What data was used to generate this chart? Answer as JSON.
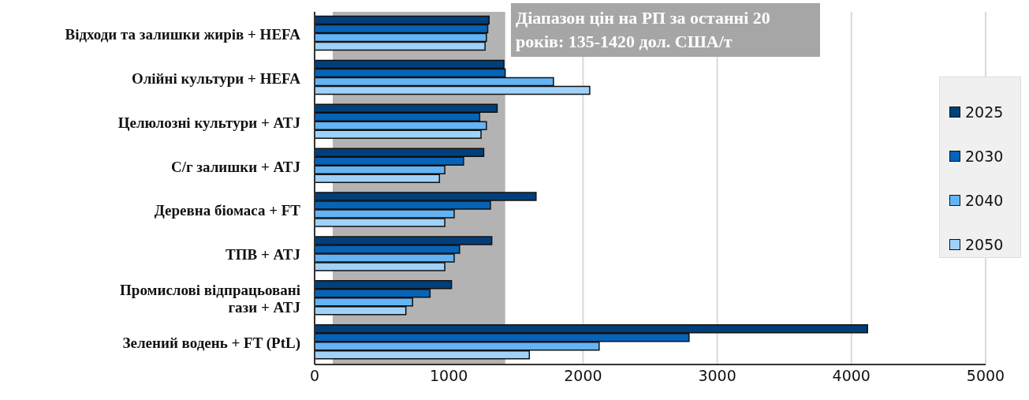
{
  "chart_data": {
    "type": "bar",
    "orientation": "horizontal",
    "categories": [
      "Відходи та залишки жирів + HEFA",
      "Олійні культури + HEFA",
      "Целюлозні культури + ATJ",
      "С/г залишки + ATJ",
      "Деревна біомаса + FT",
      "ТПВ + ATJ",
      "Промислові відпрацьовані гази + ATJ",
      "Зелений водень + FT (PtL)"
    ],
    "series": [
      {
        "name": "2025",
        "color": "#003f7a",
        "values": [
          1300,
          1410,
          1360,
          1260,
          1650,
          1320,
          1020,
          4120
        ]
      },
      {
        "name": "2030",
        "color": "#0563b8",
        "values": [
          1290,
          1420,
          1230,
          1110,
          1310,
          1080,
          860,
          2790
        ]
      },
      {
        "name": "2040",
        "color": "#64b4f5",
        "values": [
          1280,
          1780,
          1280,
          970,
          1040,
          1040,
          730,
          2120
        ]
      },
      {
        "name": "2050",
        "color": "#9ed2fb",
        "values": [
          1270,
          2050,
          1240,
          930,
          970,
          970,
          680,
          1600
        ]
      }
    ],
    "xlim": [
      0,
      5000
    ],
    "xticks": [
      0,
      1000,
      2000,
      3000,
      4000,
      5000
    ],
    "grid": "x",
    "legend": "right",
    "bands": [
      {
        "axis": "x",
        "from": 135,
        "to": 1420,
        "color": "#b3b3b3",
        "label": "Діапазон цін на РП за останні 20 років: 135-1420 дол. США/т"
      }
    ]
  }
}
